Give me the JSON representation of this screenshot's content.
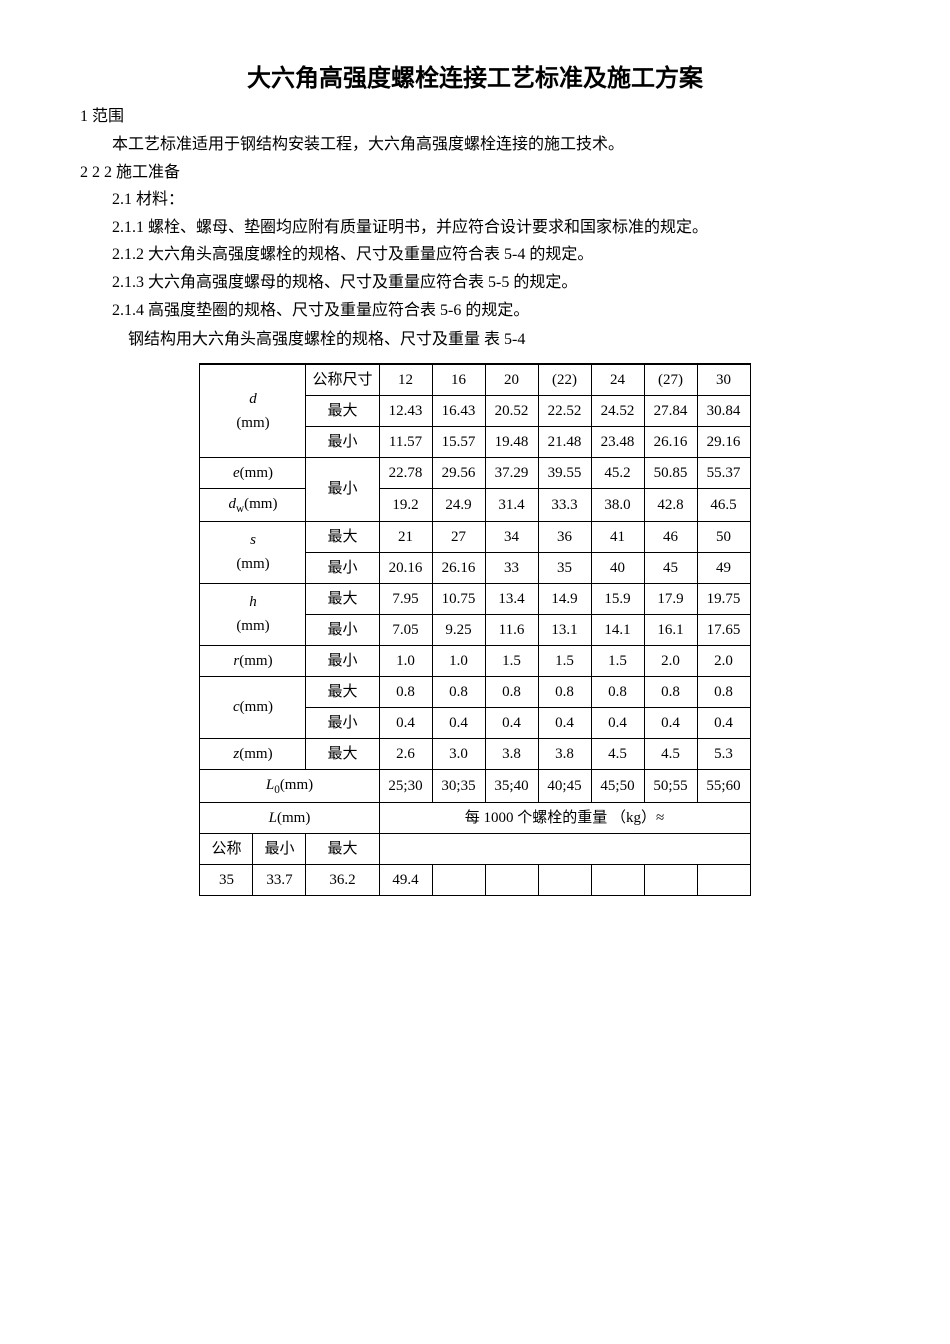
{
  "title": "大六角高强度螺栓连接工艺标准及施工方案",
  "sections": {
    "s1_label": "1  范围",
    "s1_body": "本工艺标准适用于钢结构安装工程，大六角高强度螺栓连接的施工技术。",
    "s2_label": "2  2       2       施工准备",
    "s21_label": "2.1  材料：",
    "s211": "2.1.1  螺栓、螺母、垫圈均应附有质量证明书，并应符合设计要求和国家标准的规定。",
    "s212": "2.1.2  大六角头高强度螺栓的规格、尺寸及重量应符合表 5-4 的规定。",
    "s213": "2.1.3  大六角高强度螺母的规格、尺寸及重量应符合表 5-5 的规定。",
    "s214": "2.1.4  高强度垫圈的规格、尺寸及重量应符合表 5-6 的规定。",
    "table_caption": "钢结构用大六角头高强度螺栓的规格、尺寸及重量   表 5-4"
  },
  "table": {
    "header_nominal": "公称尺寸",
    "header_cols": [
      "12",
      "16",
      "20",
      "(22)",
      "24",
      "(27)",
      "30"
    ],
    "max": "最大",
    "min": "最小",
    "nominal": "公称",
    "rows": {
      "d_label": "d",
      "d_unit": "(mm)",
      "d_max": [
        "12.43",
        "16.43",
        "20.52",
        "22.52",
        "24.52",
        "27.84",
        "30.84"
      ],
      "d_min": [
        "11.57",
        "15.57",
        "19.48",
        "21.48",
        "23.48",
        "26.16",
        "29.16"
      ],
      "e_label": "e",
      "e_unit": "(mm)",
      "e_min": [
        "22.78",
        "29.56",
        "37.29",
        "39.55",
        "45.2",
        "50.85",
        "55.37"
      ],
      "dw_label": "d",
      "dw_sub": "w",
      "dw_unit": "(mm)",
      "dw_min": [
        "19.2",
        "24.9",
        "31.4",
        "33.3",
        "38.0",
        "42.8",
        "46.5"
      ],
      "s_label": "s",
      "s_unit": "(mm)",
      "s_max": [
        "21",
        "27",
        "34",
        "36",
        "41",
        "46",
        "50"
      ],
      "s_min": [
        "20.16",
        "26.16",
        "33",
        "35",
        "40",
        "45",
        "49"
      ],
      "h_label": "h",
      "h_unit": "(mm)",
      "h_max": [
        "7.95",
        "10.75",
        "13.4",
        "14.9",
        "15.9",
        "17.9",
        "19.75"
      ],
      "h_min": [
        "7.05",
        "9.25",
        "11.6",
        "13.1",
        "14.1",
        "16.1",
        "17.65"
      ],
      "r_label": "r",
      "r_unit": "(mm)",
      "r_min": [
        "1.0",
        "1.0",
        "1.5",
        "1.5",
        "1.5",
        "2.0",
        "2.0"
      ],
      "c_label": "c",
      "c_unit": "(mm)",
      "c_max": [
        "0.8",
        "0.8",
        "0.8",
        "0.8",
        "0.8",
        "0.8",
        "0.8"
      ],
      "c_min": [
        "0.4",
        "0.4",
        "0.4",
        "0.4",
        "0.4",
        "0.4",
        "0.4"
      ],
      "z_label": "z",
      "z_unit": "(mm)",
      "z_max": [
        "2.6",
        "3.0",
        "3.8",
        "3.8",
        "4.5",
        "4.5",
        "5.3"
      ],
      "L0_label": "L",
      "L0_sub": "0",
      "L0_unit": "(mm)",
      "L0_vals": [
        "25;30",
        "30;35",
        "35;40",
        "40;45",
        "45;50",
        "50;55",
        "55;60"
      ],
      "L_label": "L",
      "L_unit": "(mm)",
      "weight_header": "每 1000 个螺栓的重量  （kg）≈",
      "L_35": "35",
      "L_35_min": "33.7",
      "L_35_max": "36.2",
      "L_35_w1": "49.4"
    }
  }
}
